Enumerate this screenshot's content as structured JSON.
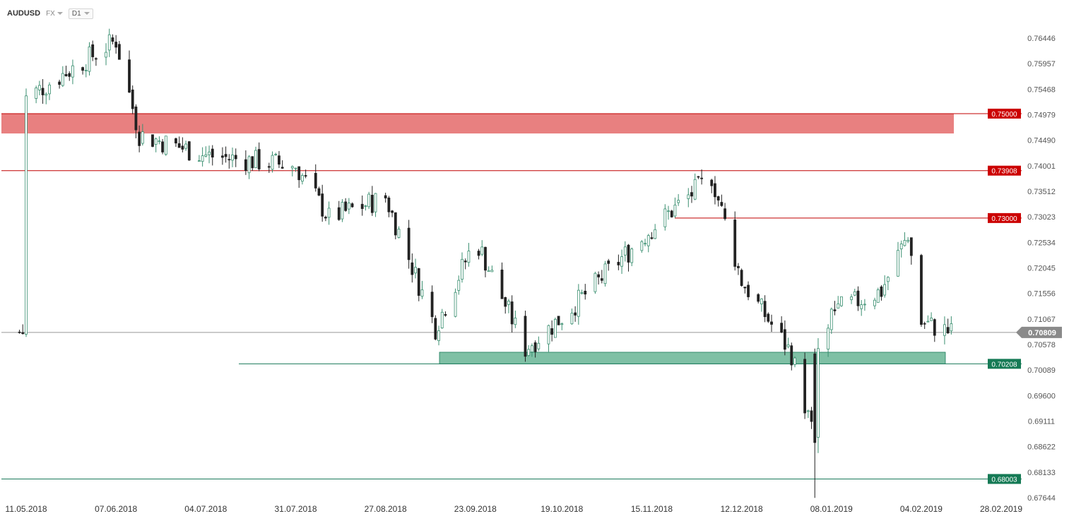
{
  "toolbar": {
    "symbol": "AUDUSD",
    "market": "FX",
    "timeframe": "D1"
  },
  "colors": {
    "up": "#3a8f70",
    "down": "#222222",
    "resistance": "#c00000",
    "resistance_zone": "#e88080",
    "support": "#1a7a5a",
    "support_zone": "#7fc0a5",
    "price_line": "#999999"
  },
  "chart_data": {
    "type": "candlestick",
    "symbol": "AUDUSD",
    "timeframe": "D1",
    "y_ticks": [
      "0.76446",
      "0.75957",
      "0.75468",
      "0.74979",
      "0.74490",
      "0.74001",
      "0.73512",
      "0.73023",
      "0.72534",
      "0.72045",
      "0.71556",
      "0.71067",
      "0.70578",
      "0.70089",
      "0.69600",
      "0.69111",
      "0.68622",
      "0.68133",
      "0.67644"
    ],
    "ylim": [
      0.67644,
      0.76446
    ],
    "x_ticks": [
      "11.05.2018",
      "07.06.2018",
      "04.07.2018",
      "31.07.2018",
      "27.08.2018",
      "23.09.2018",
      "19.10.2018",
      "15.11.2018",
      "12.12.2018",
      "08.01.2019",
      "04.02.2019",
      "28.02.2019"
    ],
    "current_price": "0.70809",
    "levels": [
      {
        "value": "0.75000",
        "type": "resistance"
      },
      {
        "value": "0.73908",
        "type": "resistance"
      },
      {
        "value": "0.73000",
        "type": "resistance"
      },
      {
        "value": "0.70208",
        "type": "support"
      },
      {
        "value": "0.68003",
        "type": "support"
      }
    ],
    "zones": [
      {
        "type": "resistance",
        "from": 0.7462,
        "to": 0.75
      },
      {
        "type": "support",
        "from": 0.70208,
        "to": 0.7043
      }
    ],
    "key_points": [
      {
        "date": "11.05.2018",
        "close": 0.753
      },
      {
        "date": "07.06.2018",
        "close": 0.764
      },
      {
        "date": "14.06.2018",
        "close": 0.746
      },
      {
        "date": "04.07.2018",
        "close": 0.742
      },
      {
        "date": "31.07.2018",
        "close": 0.74
      },
      {
        "date": "10.08.2018",
        "close": 0.73
      },
      {
        "date": "27.08.2018",
        "close": 0.734
      },
      {
        "date": "11.09.2018",
        "close": 0.709
      },
      {
        "date": "23.09.2018",
        "close": 0.726
      },
      {
        "date": "08.10.2018",
        "close": 0.705
      },
      {
        "date": "19.10.2018",
        "close": 0.711
      },
      {
        "date": "15.11.2018",
        "close": 0.728
      },
      {
        "date": "03.12.2018",
        "close": 0.738
      },
      {
        "date": "12.12.2018",
        "close": 0.718
      },
      {
        "date": "27.12.2018",
        "close": 0.704
      },
      {
        "date": "03.01.2019",
        "close": 0.687
      },
      {
        "date": "08.01.2019",
        "close": 0.712
      },
      {
        "date": "23.01.2019",
        "close": 0.716
      },
      {
        "date": "31.01.2019",
        "close": 0.727
      },
      {
        "date": "04.02.2019",
        "close": 0.71
      },
      {
        "date": "13.02.2019",
        "close": 0.7081
      }
    ]
  }
}
